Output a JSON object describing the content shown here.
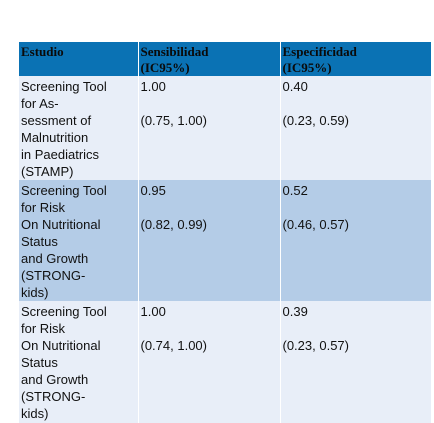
{
  "table": {
    "header": [
      "Estudio",
      "Sensibilidad (IC95%)",
      "Especificidad (IC95%)"
    ],
    "rows": [
      {
        "study": [
          "Screening Tool",
          "for As-",
          "sessment of",
          "Malnutrition",
          "in Paediatrics",
          "(STAMP)"
        ],
        "sens": "1.00",
        "sens_ci": "(0.75, 1.00)",
        "spec": "0.40",
        "spec_ci": "(0.23, 0.59)"
      },
      {
        "study": [
          "Screening Tool",
          "for Risk",
          "On Nutritional",
          "Status",
          "and Growth",
          "(STRONG-",
          "kids)"
        ],
        "sens": "0.95",
        "sens_ci": "(0.82, 0.99)",
        "spec": "0.52",
        "spec_ci": "(0.46, 0.57)"
      },
      {
        "study": [
          "Screening Tool",
          "for Risk",
          "On Nutritional",
          "Status",
          "and Growth",
          "(STRONG-",
          "kids)"
        ],
        "sens": "1.00",
        "sens_ci": "(0.74, 1.00)",
        "spec": "0.39",
        "spec_ci": "(0.23, 0.57)"
      }
    ]
  }
}
